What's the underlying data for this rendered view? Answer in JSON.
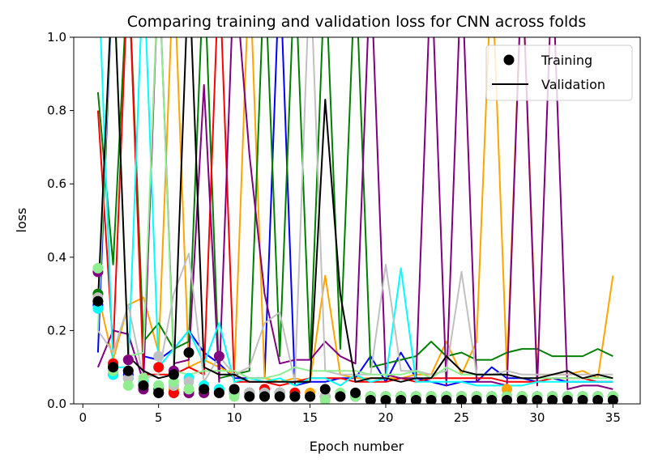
{
  "chart_data": {
    "type": "line",
    "title": "Comparing training and validation loss for CNN across folds",
    "xlabel": "Epoch number",
    "ylabel": "loss",
    "xlim": [
      -0.6,
      36.8
    ],
    "ylim": [
      0,
      1.0
    ],
    "xticks": [
      "0",
      "5",
      "10",
      "15",
      "20",
      "25",
      "30",
      "35"
    ],
    "yticks": [
      "0.0",
      "0.2",
      "0.4",
      "0.6",
      "0.8",
      "1.0"
    ],
    "legend": {
      "position": "upper right",
      "entries": [
        {
          "label": "Training",
          "marker": "dot",
          "color": "#000000"
        },
        {
          "label": "Validation",
          "marker": "line",
          "color": "#000000"
        }
      ]
    },
    "x": [
      1,
      2,
      3,
      4,
      5,
      6,
      7,
      8,
      9,
      10,
      11,
      12,
      13,
      14,
      15,
      16,
      17,
      18,
      19,
      20,
      21,
      22,
      23,
      24,
      25,
      26,
      27,
      28,
      29,
      30,
      31,
      32,
      33,
      34,
      35
    ],
    "series": [
      {
        "color": "#0000ff",
        "train": [
          0.27,
          0.08,
          0.08,
          0.05,
          0.03,
          0.03,
          0.03,
          0.04,
          0.03,
          0.03,
          0.03,
          0.03,
          0.03,
          0.02,
          0.02,
          0.02,
          0.02,
          0.02,
          0.02,
          0.02,
          0.02,
          0.02,
          0.02,
          0.02,
          0.02,
          0.02,
          0.02,
          0.02,
          0.02,
          0.02,
          0.02,
          0.02,
          0.02,
          0.02,
          0.02
        ],
        "val": [
          0.14,
          1.2,
          1.2,
          0.13,
          0.12,
          0.15,
          0.2,
          0.14,
          0.11,
          0.07,
          0.07,
          0.07,
          1.2,
          0.05,
          0.06,
          0.06,
          0.07,
          0.07,
          0.13,
          0.06,
          0.14,
          0.07,
          0.06,
          0.05,
          0.06,
          0.06,
          0.1,
          0.07,
          0.07,
          0.06,
          0.07,
          0.06,
          0.06,
          0.06,
          0.06
        ]
      },
      {
        "color": "#ffa500",
        "train": [
          0.3,
          0.11,
          0.12,
          0.06,
          0.04,
          0.04,
          0.03,
          0.05,
          0.04,
          0.03,
          0.03,
          0.03,
          0.03,
          0.03,
          0.03,
          0.02,
          0.02,
          0.02,
          0.02,
          0.02,
          0.02,
          0.02,
          0.02,
          0.02,
          0.02,
          0.02,
          0.02,
          0.04,
          0.02,
          0.02,
          0.02,
          0.02,
          0.02,
          0.02,
          0.02
        ],
        "val": [
          0.3,
          0.12,
          0.27,
          0.29,
          0.14,
          1.2,
          0.1,
          0.12,
          0.1,
          0.08,
          1.2,
          0.07,
          0.06,
          0.07,
          0.06,
          0.35,
          0.08,
          0.07,
          0.07,
          0.07,
          0.07,
          0.08,
          0.08,
          0.17,
          0.08,
          0.17,
          1.2,
          0.09,
          1.2,
          0.08,
          0.08,
          0.08,
          0.09,
          0.07,
          0.35
        ]
      },
      {
        "color": "#008000",
        "train": [
          0.3,
          0.1,
          0.07,
          0.05,
          0.04,
          0.03,
          0.03,
          0.03,
          0.03,
          0.03,
          0.03,
          0.03,
          0.03,
          0.02,
          0.02,
          0.02,
          0.02,
          0.02,
          0.02,
          0.02,
          0.02,
          0.02,
          0.02,
          0.02,
          0.02,
          0.02,
          0.02,
          0.02,
          0.02,
          0.02,
          0.02,
          0.02,
          0.02,
          0.02,
          0.02
        ],
        "val": [
          0.85,
          0.38,
          1.2,
          0.17,
          0.22,
          0.15,
          0.17,
          1.2,
          0.07,
          0.08,
          0.09,
          1.2,
          0.13,
          1.2,
          0.12,
          1.2,
          0.15,
          1.2,
          0.1,
          0.11,
          0.12,
          0.13,
          0.17,
          0.13,
          0.14,
          0.12,
          0.12,
          0.14,
          0.15,
          0.15,
          0.13,
          0.13,
          0.13,
          0.15,
          0.13
        ]
      },
      {
        "color": "#ff0000",
        "train": [
          0.28,
          0.11,
          0.09,
          0.05,
          0.1,
          0.03,
          0.03,
          0.04,
          0.03,
          0.03,
          0.03,
          0.04,
          0.03,
          0.03,
          0.02,
          0.02,
          0.02,
          0.02,
          0.02,
          0.02,
          0.02,
          0.02,
          0.02,
          0.02,
          0.02,
          0.02,
          0.02,
          0.02,
          0.02,
          0.02,
          0.02,
          0.02,
          0.02,
          0.02,
          0.02
        ],
        "val": [
          0.8,
          0.15,
          1.2,
          0.08,
          0.08,
          0.08,
          0.1,
          0.08,
          1.2,
          0.06,
          0.06,
          0.06,
          0.05,
          0.06,
          0.07,
          0.07,
          0.07,
          0.06,
          0.06,
          0.06,
          0.07,
          0.06,
          0.07,
          0.07,
          0.07,
          0.07,
          0.07,
          0.06,
          0.06,
          0.06,
          0.07,
          0.07,
          0.07,
          0.06,
          0.06
        ]
      },
      {
        "color": "#800080",
        "train": [
          0.36,
          0.1,
          0.12,
          0.04,
          0.03,
          0.09,
          0.03,
          0.03,
          0.13,
          0.03,
          0.03,
          0.03,
          0.03,
          0.02,
          0.02,
          0.02,
          0.02,
          0.02,
          0.02,
          0.02,
          0.02,
          0.02,
          0.02,
          0.02,
          0.02,
          0.02,
          0.02,
          0.02,
          0.02,
          0.02,
          0.02,
          0.02,
          0.02,
          0.02,
          0.02
        ],
        "val": [
          0.1,
          0.2,
          0.19,
          0.06,
          1.2,
          0.11,
          0.12,
          0.87,
          0.06,
          1.2,
          0.68,
          0.3,
          0.11,
          0.12,
          0.12,
          0.17,
          0.13,
          0.11,
          1.2,
          0.08,
          0.07,
          0.07,
          1.2,
          0.05,
          1.2,
          0.06,
          0.06,
          0.05,
          1.2,
          0.05,
          1.2,
          0.04,
          0.05,
          0.05,
          0.04
        ]
      },
      {
        "color": "#00ffff",
        "train": [
          0.26,
          0.08,
          0.07,
          0.06,
          0.05,
          0.05,
          0.07,
          0.05,
          0.04,
          0.03,
          0.03,
          0.03,
          0.03,
          0.02,
          0.02,
          0.02,
          0.02,
          0.02,
          0.02,
          0.02,
          0.02,
          0.02,
          0.02,
          0.02,
          0.02,
          0.02,
          0.02,
          0.02,
          0.02,
          0.02,
          0.02,
          0.02,
          0.02,
          0.02,
          0.02
        ],
        "val": [
          1.2,
          0.1,
          0.1,
          1.2,
          0.1,
          0.15,
          0.2,
          0.11,
          0.22,
          0.06,
          0.07,
          0.06,
          0.07,
          0.05,
          0.07,
          0.07,
          0.05,
          0.08,
          0.06,
          0.07,
          0.37,
          0.06,
          0.06,
          0.06,
          0.06,
          0.05,
          0.05,
          0.05,
          0.05,
          0.06,
          0.06,
          0.06,
          0.06,
          0.06,
          0.06
        ]
      },
      {
        "color": "#c0c0c0",
        "train": [
          0.29,
          0.09,
          0.07,
          0.05,
          0.13,
          0.05,
          0.06,
          0.04,
          0.03,
          0.03,
          0.03,
          0.03,
          0.03,
          0.02,
          0.02,
          0.02,
          0.02,
          0.02,
          0.02,
          0.02,
          0.02,
          0.02,
          0.02,
          0.02,
          0.02,
          0.02,
          0.02,
          0.02,
          0.02,
          0.02,
          0.02,
          0.02,
          0.02,
          0.02,
          0.02
        ],
        "val": [
          0.2,
          0.14,
          0.27,
          0.07,
          0.08,
          0.3,
          0.41,
          0.06,
          0.13,
          0.08,
          0.1,
          0.22,
          0.25,
          0.06,
          1.2,
          0.09,
          0.08,
          0.08,
          0.08,
          0.38,
          0.09,
          0.09,
          0.08,
          0.09,
          0.36,
          0.08,
          0.08,
          0.09,
          0.08,
          0.08,
          0.08,
          0.08,
          0.08,
          0.08,
          0.08
        ]
      },
      {
        "color": "#90ee90",
        "train": [
          0.37,
          0.09,
          0.05,
          0.07,
          0.05,
          0.06,
          0.04,
          0.04,
          0.03,
          0.02,
          0.02,
          0.02,
          0.02,
          0.02,
          0.02,
          0.01,
          0.03,
          0.02,
          0.02,
          0.02,
          0.02,
          0.02,
          0.02,
          0.02,
          0.02,
          0.02,
          0.02,
          0.02,
          0.02,
          0.02,
          0.02,
          0.02,
          0.02,
          0.02,
          0.02
        ],
        "val": [
          0.2,
          1.2,
          0.13,
          0.14,
          1.2,
          0.09,
          0.08,
          0.09,
          0.09,
          0.09,
          0.07,
          0.07,
          0.08,
          0.1,
          0.09,
          0.09,
          0.09,
          0.09,
          0.08,
          0.08,
          0.08,
          0.09,
          0.07,
          0.1,
          0.08,
          0.08,
          0.08,
          0.08,
          0.07,
          0.07,
          0.07,
          0.07,
          0.07,
          0.07,
          0.07
        ]
      },
      {
        "color": "#000000",
        "train": [
          0.28,
          0.1,
          0.09,
          0.05,
          0.03,
          0.08,
          0.14,
          0.04,
          0.03,
          0.04,
          0.02,
          0.02,
          0.02,
          0.02,
          0.02,
          0.04,
          0.02,
          0.03,
          0.01,
          0.01,
          0.01,
          0.01,
          0.01,
          0.01,
          0.01,
          0.01,
          0.01,
          0.01,
          0.01,
          0.01,
          0.01,
          0.01,
          0.01,
          0.01,
          0.01
        ],
        "val": [
          0.28,
          1.2,
          0.13,
          0.09,
          0.07,
          0.08,
          1.2,
          0.1,
          0.08,
          0.08,
          0.06,
          0.06,
          0.06,
          0.06,
          0.06,
          0.83,
          0.3,
          0.06,
          0.07,
          0.07,
          0.06,
          0.07,
          0.07,
          0.13,
          0.09,
          0.08,
          0.08,
          0.08,
          0.07,
          0.07,
          0.08,
          0.09,
          0.07,
          0.08,
          0.07
        ]
      }
    ]
  }
}
